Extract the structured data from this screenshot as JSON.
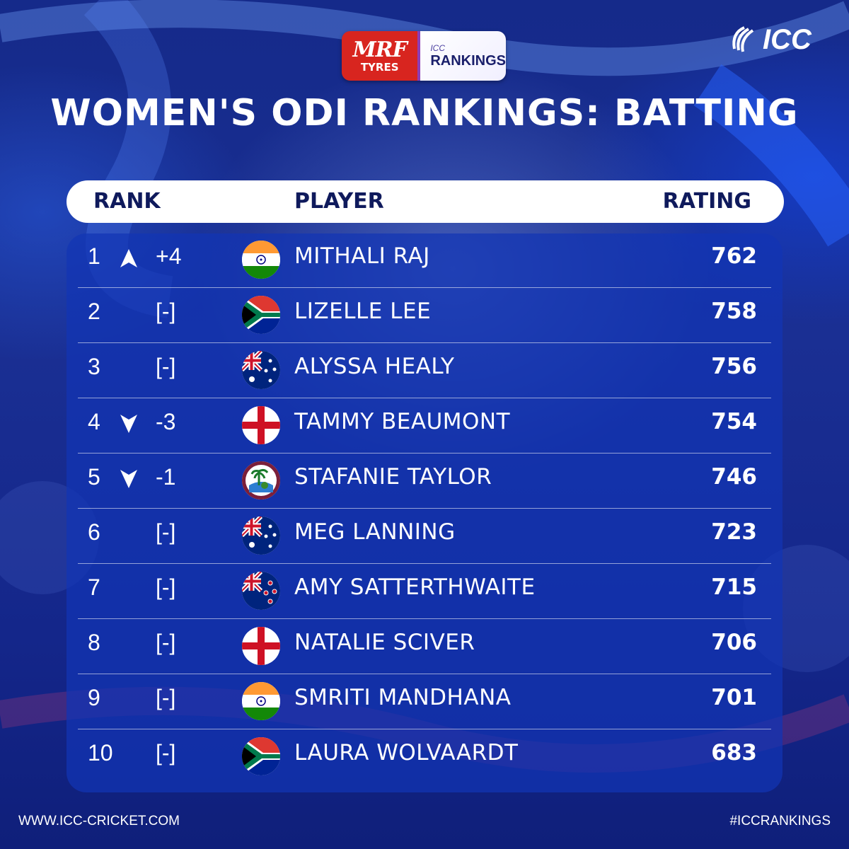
{
  "logo": {
    "brand": "MRF",
    "brand_sub": "TYRES",
    "icc_small": "ICC",
    "rankings": "RANKINGS",
    "icc": "ICC"
  },
  "title": "WOMEN'S ODI RANKINGS: BATTING",
  "columns": {
    "rank": "RANK",
    "player": "PLAYER",
    "rating": "RATING"
  },
  "rows": [
    {
      "rank": "1",
      "trend": "up",
      "change": "+4",
      "flag": "india-flag-icon",
      "player": "MITHALI RAJ",
      "rating": "762"
    },
    {
      "rank": "2",
      "trend": "none",
      "change": "[-]",
      "flag": "south-africa-flag-icon",
      "player": "LIZELLE LEE",
      "rating": "758"
    },
    {
      "rank": "3",
      "trend": "none",
      "change": "[-]",
      "flag": "australia-flag-icon",
      "player": "ALYSSA HEALY",
      "rating": "756"
    },
    {
      "rank": "4",
      "trend": "down",
      "change": "-3",
      "flag": "england-flag-icon",
      "player": "TAMMY BEAUMONT",
      "rating": "754"
    },
    {
      "rank": "5",
      "trend": "down",
      "change": "-1",
      "flag": "west-indies-flag-icon",
      "player": "STAFANIE TAYLOR",
      "rating": "746"
    },
    {
      "rank": "6",
      "trend": "none",
      "change": "[-]",
      "flag": "australia-flag-icon",
      "player": "MEG LANNING",
      "rating": "723"
    },
    {
      "rank": "7",
      "trend": "none",
      "change": "[-]",
      "flag": "new-zealand-flag-icon",
      "player": "AMY SATTERTHWAITE",
      "rating": "715"
    },
    {
      "rank": "8",
      "trend": "none",
      "change": "[-]",
      "flag": "england-flag-icon",
      "player": "NATALIE SCIVER",
      "rating": "706"
    },
    {
      "rank": "9",
      "trend": "none",
      "change": "[-]",
      "flag": "india-flag-icon",
      "player": "SMRITI MANDHANA",
      "rating": "701"
    },
    {
      "rank": "10",
      "trend": "none",
      "change": "[-]",
      "flag": "south-africa-flag-icon",
      "player": "LAURA WOLVAARDT",
      "rating": "683"
    }
  ],
  "footer": {
    "website": "WWW.ICC-CRICKET.COM",
    "hashtag": "#ICCRANKINGS"
  },
  "colors": {
    "background": "#152a8a",
    "panel": "#1234b4",
    "header_text": "#0f1a5c",
    "mrf_red": "#d8251f"
  }
}
